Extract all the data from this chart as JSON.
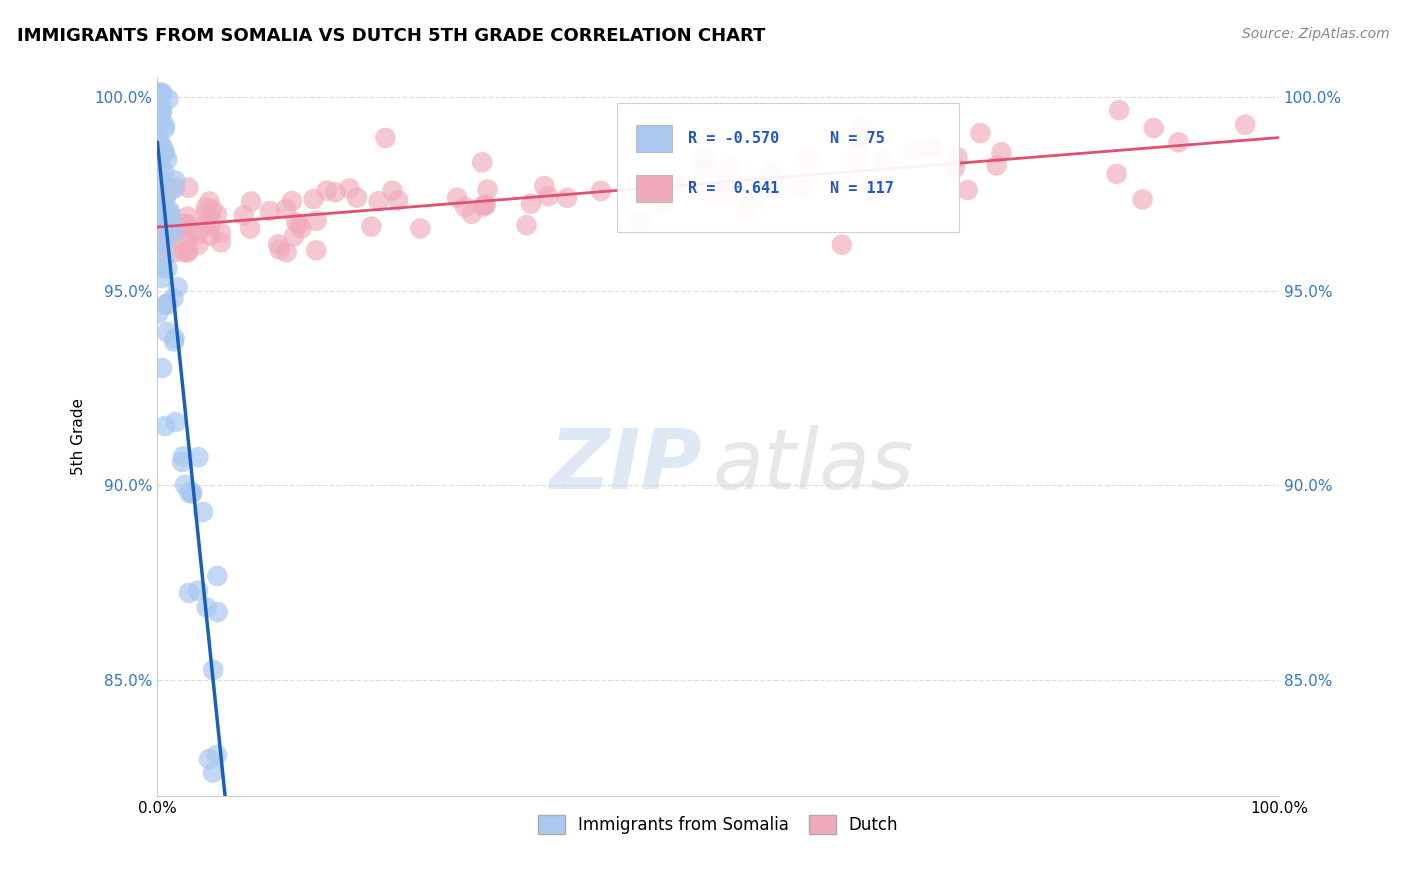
{
  "title": "IMMIGRANTS FROM SOMALIA VS DUTCH 5TH GRADE CORRELATION CHART",
  "source": "Source: ZipAtlas.com",
  "ylabel": "5th Grade",
  "legend_somalia": "Immigrants from Somalia",
  "legend_dutch": "Dutch",
  "somalia_R": "-0.570",
  "somalia_N": "75",
  "dutch_R": "0.641",
  "dutch_N": "117",
  "somalia_color": "#aac8f0",
  "dutch_color": "#f0aabb",
  "somalia_line_color": "#1a5fba",
  "dutch_line_color": "#e05070",
  "xlim": [
    0.0,
    1.0
  ],
  "ylim": [
    0.82,
    1.005
  ],
  "yticks": [
    0.85,
    0.9,
    0.95,
    1.0
  ],
  "ytick_labels": [
    "85.0%",
    "90.0%",
    "95.0%",
    "100.0%"
  ],
  "background_color": "#ffffff",
  "grid_color": "#dddddd",
  "watermark_zip_color": "#c5d8f0",
  "watermark_atlas_color": "#d5d5d5",
  "legend_box_color": "#f5f5f5",
  "legend_box_edge": "#cccccc",
  "R_N_color": "#2255cc",
  "title_fontsize": 13,
  "source_fontsize": 10,
  "tick_fontsize": 11,
  "ylabel_fontsize": 11
}
